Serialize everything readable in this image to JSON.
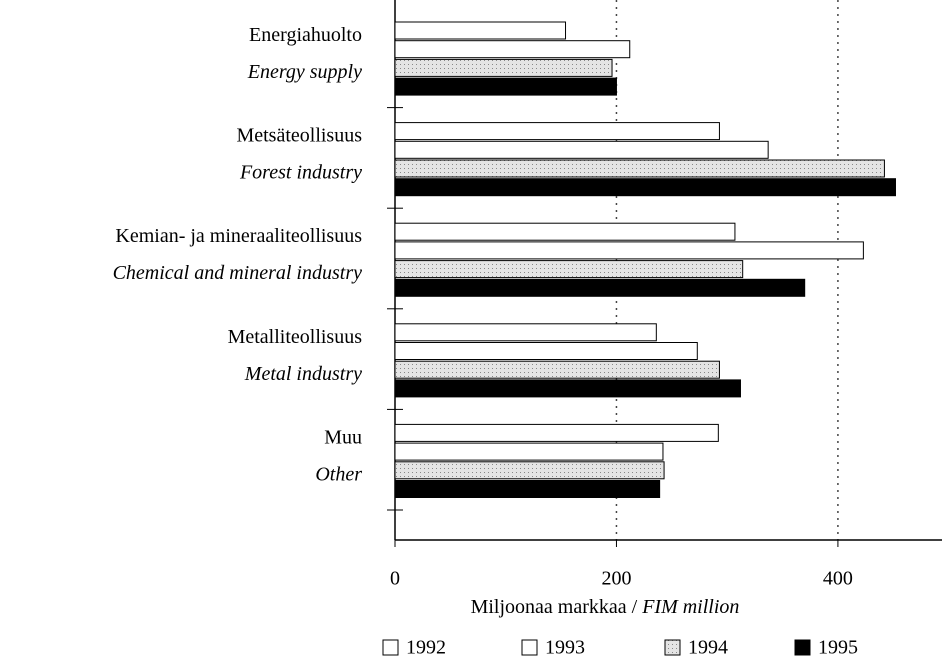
{
  "chart_data": {
    "type": "bar",
    "orientation": "horizontal",
    "categories": [
      "Energiahuolto",
      "Metsäteollisuus",
      "Kemian- ja mineraaliteollisuus",
      "Metalliteollisuus",
      "Muu"
    ],
    "categories_en": [
      "Energy supply",
      "Forest industry",
      "Chemical and mineral industry",
      "Metal industry",
      "Other"
    ],
    "series": [
      {
        "name": "1992",
        "color": "#ffffff",
        "values": [
          154,
          293,
          307,
          236,
          292
        ]
      },
      {
        "name": "1993",
        "color": "#ffffff",
        "values": [
          212,
          337,
          423,
          273,
          242
        ]
      },
      {
        "name": "1994",
        "color": "#d9d9d9",
        "values": [
          196,
          442,
          314,
          293,
          243
        ]
      },
      {
        "name": "1995",
        "color": "#000000",
        "values": [
          200,
          452,
          370,
          312,
          239
        ]
      }
    ],
    "xlim": [
      0,
      494
    ],
    "xticks": [
      0,
      200,
      400
    ],
    "grid": true,
    "x_label": [
      "Miljoonaa markkaa /",
      "FIM million"
    ],
    "legend": "bottom"
  }
}
